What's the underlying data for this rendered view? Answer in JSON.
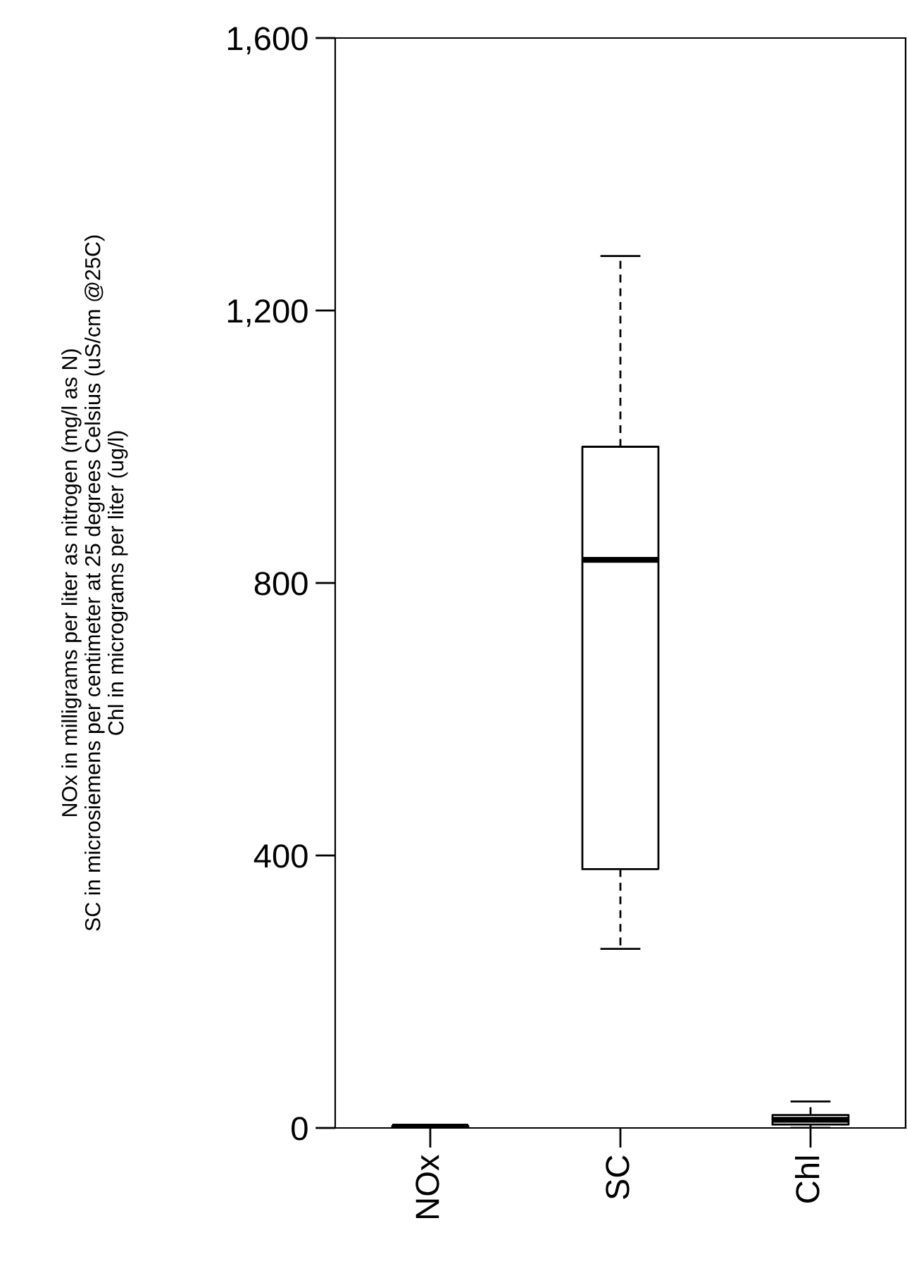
{
  "chart_data": {
    "type": "box",
    "ylabel": "NOx in milligrams per liter as nitrogen (mg/l as N)\nSC in microsiemens per centimeter at 25 degrees Celsius (uS/cm @25C)\nChl in micrograms per liter (ug/l)",
    "categories": [
      "NOx",
      "SC",
      "Chl"
    ],
    "boxes": [
      {
        "low": 0,
        "q1": 1,
        "median": 2,
        "q3": 3,
        "high": 4
      },
      {
        "low": 263,
        "q1": 380,
        "median": 834,
        "q3": 1000,
        "high": 1280
      },
      {
        "low": 0,
        "q1": 5,
        "median": 12,
        "q3": 19,
        "high": 39
      }
    ],
    "ylim": [
      0,
      1600
    ],
    "yticks": [
      {
        "value": 0,
        "label": "0"
      },
      {
        "value": 400,
        "label": "400"
      },
      {
        "value": 800,
        "label": "800"
      },
      {
        "value": 1200,
        "label": "1,200"
      },
      {
        "value": 1600,
        "label": "1,600"
      }
    ],
    "grid": false
  }
}
